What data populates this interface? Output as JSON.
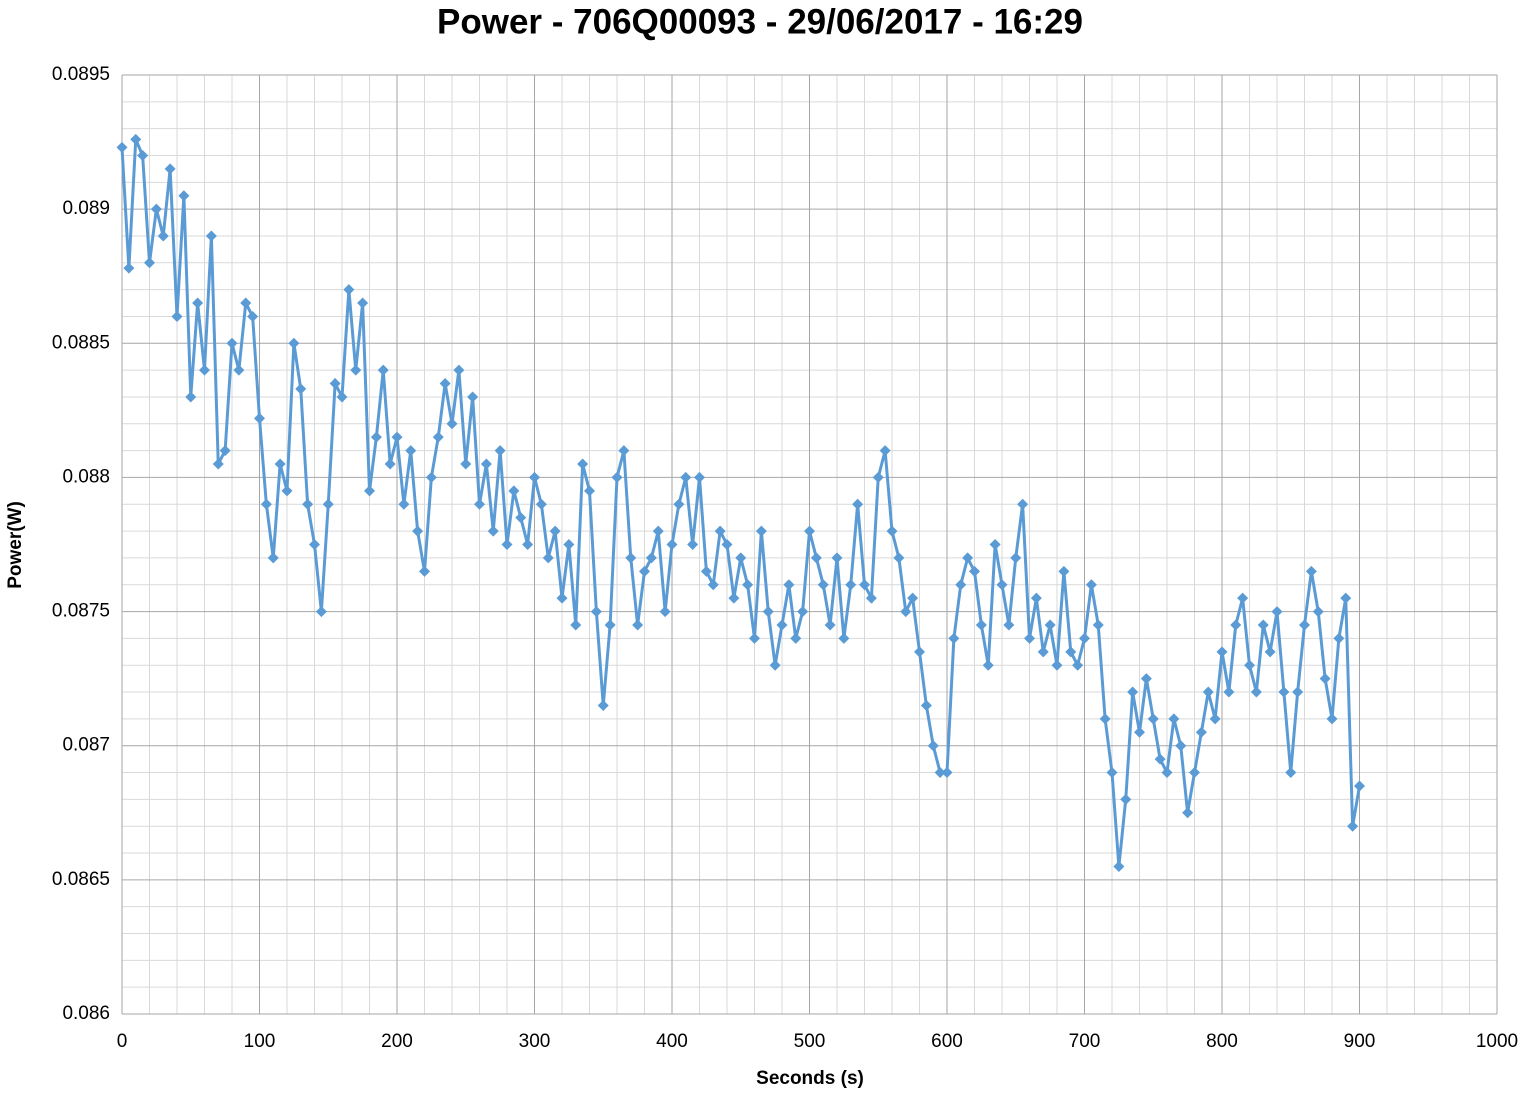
{
  "chart_data": {
    "type": "line",
    "title": "Power - 706Q00093 - 29/06/2017 - 16:29",
    "x_label": "Seconds (s)",
    "y_label": "Power(W)",
    "x": [
      0,
      5,
      10,
      15,
      20,
      25,
      30,
      35,
      40,
      45,
      50,
      55,
      60,
      65,
      70,
      75,
      80,
      85,
      90,
      95,
      100,
      105,
      110,
      115,
      120,
      125,
      130,
      135,
      140,
      145,
      150,
      155,
      160,
      165,
      170,
      175,
      180,
      185,
      190,
      195,
      200,
      205,
      210,
      215,
      220,
      225,
      230,
      235,
      240,
      245,
      250,
      255,
      260,
      265,
      270,
      275,
      280,
      285,
      290,
      295,
      300,
      305,
      310,
      315,
      320,
      325,
      330,
      335,
      340,
      345,
      350,
      355,
      360,
      365,
      370,
      375,
      380,
      385,
      390,
      395,
      400,
      405,
      410,
      415,
      420,
      425,
      430,
      435,
      440,
      445,
      450,
      455,
      460,
      465,
      470,
      475,
      480,
      485,
      490,
      495,
      500,
      505,
      510,
      515,
      520,
      525,
      530,
      535,
      540,
      545,
      550,
      555,
      560,
      565,
      570,
      575,
      580,
      585,
      590,
      595,
      600,
      605,
      610,
      615,
      620,
      625,
      630,
      635,
      640,
      645,
      650,
      655,
      660,
      665,
      670,
      675,
      680,
      685,
      690,
      695,
      700,
      705,
      710,
      715,
      720,
      725,
      730,
      735,
      740,
      745,
      750,
      755,
      760,
      765,
      770,
      775,
      780,
      785,
      790,
      795,
      800,
      805,
      810,
      815,
      820,
      825,
      830,
      835,
      840,
      845,
      850,
      855,
      860,
      865,
      870,
      875,
      880,
      885,
      890,
      895,
      900
    ],
    "series": [
      {
        "color": "#5b9bd5",
        "values": [
          0.08923,
          0.08878,
          0.08926,
          0.0892,
          0.0888,
          0.089,
          0.0889,
          0.08915,
          0.0886,
          0.08905,
          0.0883,
          0.08865,
          0.0884,
          0.0889,
          0.08805,
          0.0881,
          0.0885,
          0.0884,
          0.08865,
          0.0886,
          0.08822,
          0.0879,
          0.0877,
          0.08805,
          0.08795,
          0.0885,
          0.08833,
          0.0879,
          0.08775,
          0.0875,
          0.0879,
          0.08835,
          0.0883,
          0.0887,
          0.0884,
          0.08865,
          0.08795,
          0.08815,
          0.0884,
          0.08805,
          0.08815,
          0.0879,
          0.0881,
          0.0878,
          0.08765,
          0.088,
          0.08815,
          0.08835,
          0.0882,
          0.0884,
          0.08805,
          0.0883,
          0.0879,
          0.08805,
          0.0878,
          0.0881,
          0.08775,
          0.08795,
          0.08785,
          0.08775,
          0.088,
          0.0879,
          0.0877,
          0.0878,
          0.08755,
          0.08775,
          0.08745,
          0.08805,
          0.08795,
          0.0875,
          0.08715,
          0.08745,
          0.088,
          0.0881,
          0.0877,
          0.08745,
          0.08765,
          0.0877,
          0.0878,
          0.0875,
          0.08775,
          0.0879,
          0.088,
          0.08775,
          0.088,
          0.08765,
          0.0876,
          0.0878,
          0.08775,
          0.08755,
          0.0877,
          0.0876,
          0.0874,
          0.0878,
          0.0875,
          0.0873,
          0.08745,
          0.0876,
          0.0874,
          0.0875,
          0.0878,
          0.0877,
          0.0876,
          0.08745,
          0.0877,
          0.0874,
          0.0876,
          0.0879,
          0.0876,
          0.08755,
          0.088,
          0.0881,
          0.0878,
          0.0877,
          0.0875,
          0.08755,
          0.08735,
          0.08715,
          0.087,
          0.0869,
          0.0869,
          0.0874,
          0.0876,
          0.0877,
          0.08765,
          0.08745,
          0.0873,
          0.08775,
          0.0876,
          0.08745,
          0.0877,
          0.0879,
          0.0874,
          0.08755,
          0.08735,
          0.08745,
          0.0873,
          0.08765,
          0.08735,
          0.0873,
          0.0874,
          0.0876,
          0.08745,
          0.0871,
          0.0869,
          0.08655,
          0.0868,
          0.0872,
          0.08705,
          0.08725,
          0.0871,
          0.08695,
          0.0869,
          0.0871,
          0.087,
          0.08675,
          0.0869,
          0.08705,
          0.0872,
          0.0871,
          0.08735,
          0.0872,
          0.08745,
          0.08755,
          0.0873,
          0.0872,
          0.08745,
          0.08735,
          0.0875,
          0.0872,
          0.0869,
          0.0872,
          0.08745,
          0.08765,
          0.0875,
          0.08725,
          0.0871,
          0.0874,
          0.08755,
          0.0867,
          0.08685
        ]
      }
    ],
    "xlim": [
      0,
      1000
    ],
    "xticks": [
      0,
      100,
      200,
      300,
      400,
      500,
      600,
      700,
      800,
      900,
      1000
    ],
    "ylim": [
      0.086,
      0.0895
    ],
    "yticks": [
      0.086,
      0.0865,
      0.087,
      0.0875,
      0.088,
      0.0885,
      0.089,
      0.0895
    ],
    "grid": true,
    "minor_grid": 5
  }
}
